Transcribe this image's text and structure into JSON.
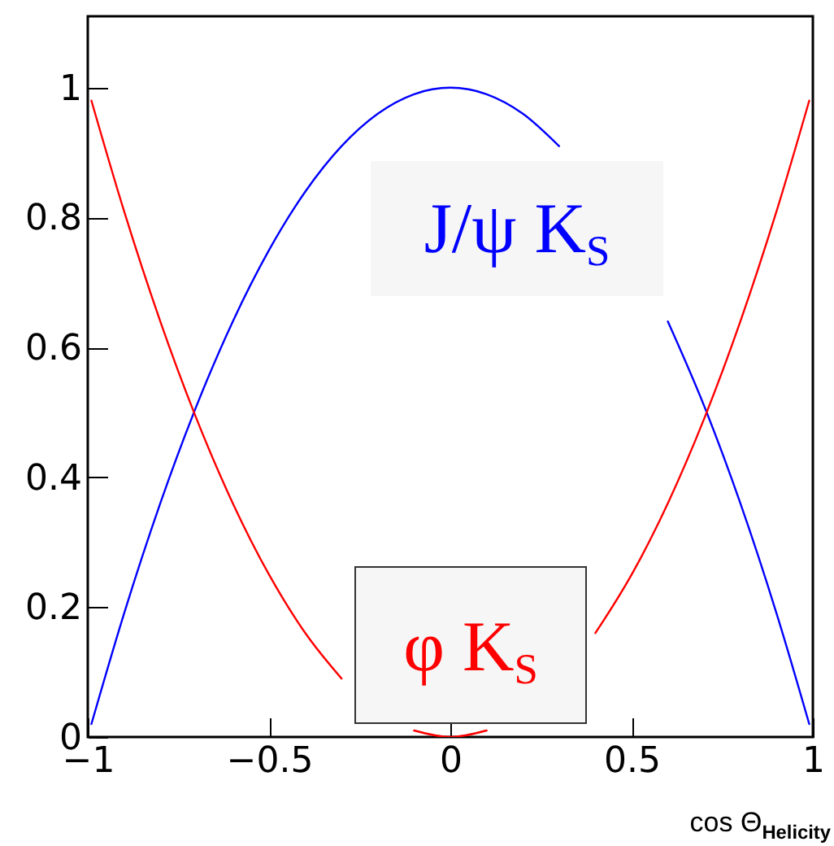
{
  "chart_data": {
    "type": "line",
    "xlabel": "cos Θ$_{Helicity}$",
    "xlim": [
      -1,
      1
    ],
    "xticks": [
      -1,
      -0.5,
      0,
      0.5,
      1
    ],
    "ylim": [
      0,
      1.11
    ],
    "yticks": [
      0,
      0.2,
      0.4,
      0.6,
      0.8,
      1
    ],
    "grid": false,
    "marker": "none",
    "line_style": "solid",
    "series": [
      {
        "name": "J/ψ K$_{S}$",
        "color": "#0000ff",
        "x": [
          -0.99,
          -0.9,
          -0.8,
          -0.7,
          -0.6,
          -0.5,
          -0.4,
          -0.3,
          -0.2,
          -0.1,
          0,
          0.1,
          0.2,
          0.3,
          0.4,
          0.5,
          0.6,
          0.7,
          0.8,
          0.9,
          0.99
        ],
        "values": [
          0.02,
          0.19,
          0.36,
          0.51,
          0.64,
          0.75,
          0.84,
          0.91,
          0.96,
          0.99,
          1,
          0.99,
          0.96,
          0.91,
          null,
          null,
          0.64,
          0.51,
          0.36,
          0.19,
          0.02
        ]
      },
      {
        "name": "φ K$_{S}$",
        "color": "#ff0000",
        "x": [
          -0.99,
          -0.9,
          -0.8,
          -0.7,
          -0.6,
          -0.5,
          -0.4,
          -0.3,
          -0.2,
          -0.1,
          0,
          0.1,
          0.2,
          0.3,
          0.4,
          0.5,
          0.6,
          0.7,
          0.8,
          0.9,
          0.99
        ],
        "values": [
          0.98,
          0.81,
          0.64,
          0.49,
          0.36,
          0.25,
          0.16,
          0.09,
          null,
          0.01,
          0,
          0.01,
          null,
          null,
          0.16,
          0.25,
          0.36,
          0.49,
          0.64,
          0.81,
          0.98
        ]
      }
    ]
  }
}
